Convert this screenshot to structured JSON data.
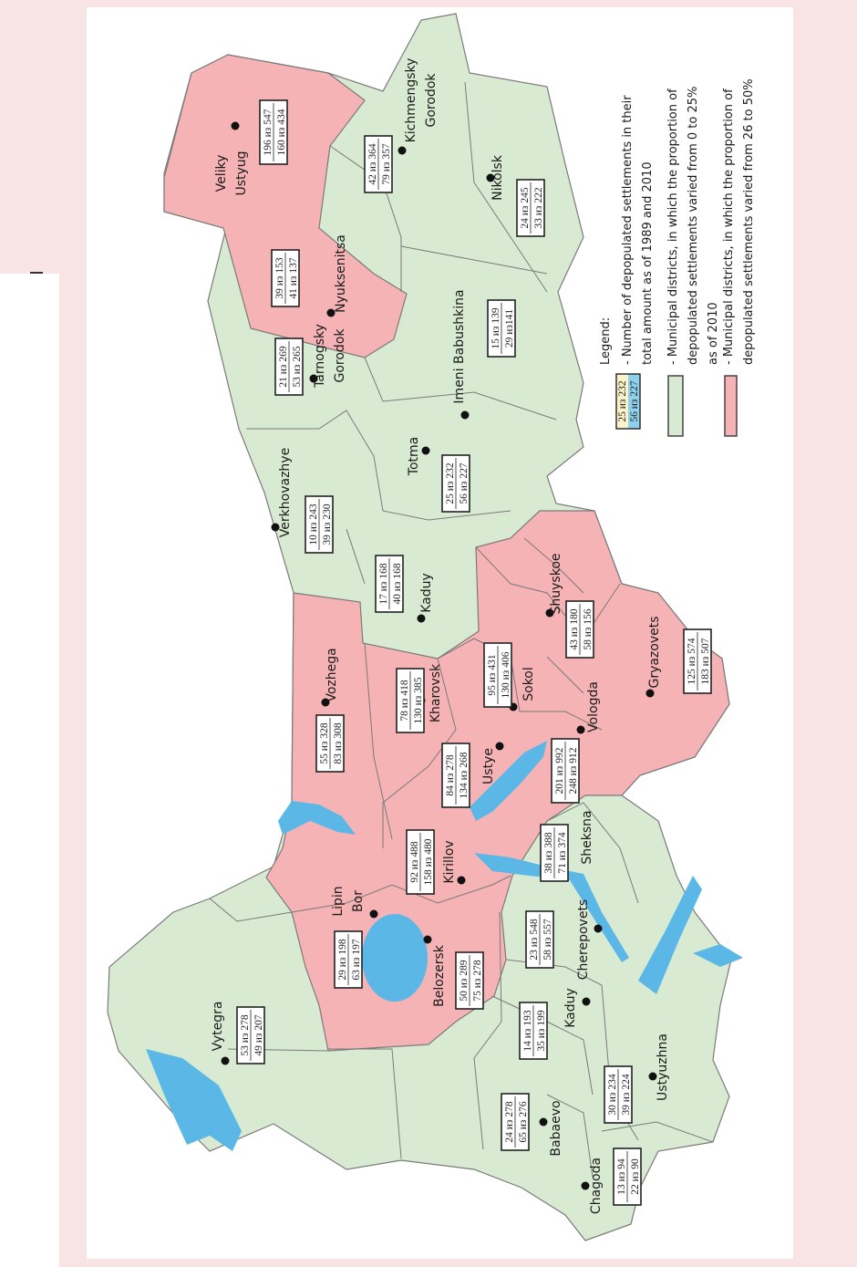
{
  "colors": {
    "low": "#d9ead3",
    "high": "#f6b3b5",
    "water": "#5bb8e6",
    "border": "#7a7a7a",
    "frame": "#f8e3e5",
    "year1989": "#fbf3c8",
    "year2010": "#8fd0ec"
  },
  "districts": [
    {
      "name": [
        "Veliky",
        "Ustyug"
      ],
      "c1989": "196 из 547",
      "c2010": "160 из 434",
      "category": "high"
    },
    {
      "name": [
        "Kichmengsky",
        "Gorodok"
      ],
      "c1989": "42 из 364",
      "c2010": "79 из 357",
      "category": "low"
    },
    {
      "name": [
        "Nikolsk"
      ],
      "c1989": "24 из 245",
      "c2010": "33 из 222",
      "category": "low"
    },
    {
      "name": [
        "Nyuksenitsa"
      ],
      "c1989": "39 из 153",
      "c2010": "41 из 137",
      "category": "high"
    },
    {
      "name": [
        "Tarnogsky",
        "Gorodok"
      ],
      "c1989": "21 из 269",
      "c2010": "53 из 265",
      "category": "low"
    },
    {
      "name": [
        "Imeni Babushkina"
      ],
      "c1989": "15 из 139",
      "c2010": "29 из141",
      "category": "low"
    },
    {
      "name": [
        "Totma"
      ],
      "c1989": "25 из 232",
      "c2010": "56 из 227",
      "category": "low"
    },
    {
      "name": [
        "Verkhovazhye"
      ],
      "c1989": "10 из 243",
      "c2010": "39 из 230",
      "category": "low"
    },
    {
      "name": [
        "Kaduy"
      ],
      "c1989": "17 из 168",
      "c2010": "40 из 168",
      "category": "low"
    },
    {
      "name": [
        "Vozhega"
      ],
      "c1989": "55 из 328",
      "c2010": "83 из 308",
      "category": "high"
    },
    {
      "name": [
        "Kharovsk"
      ],
      "c1989": "78 из 418",
      "c2010": "130 из 385",
      "category": "high"
    },
    {
      "name": [
        "Sokol"
      ],
      "c1989": "95 из 431",
      "c2010": "130 из 406",
      "category": "high"
    },
    {
      "name": [
        "Shuyskoe"
      ],
      "c1989": "43 из 180",
      "c2010": "58 из 156",
      "category": "high"
    },
    {
      "name": [
        "Gryazovets"
      ],
      "c1989": "125 из 574",
      "c2010": "183 из 507",
      "category": "high"
    },
    {
      "name": [
        "Ustye"
      ],
      "c1989": "84 из 278",
      "c2010": "134 из 268",
      "category": "high"
    },
    {
      "name": [
        "Vologda"
      ],
      "c1989": "201 из 992",
      "c2010": "248 из 912",
      "category": "high"
    },
    {
      "name": [
        "Kirillov"
      ],
      "c1989": "92 из 488",
      "c2010": "158 из 480",
      "category": "high"
    },
    {
      "name": [
        "Sheksna"
      ],
      "c1989": "38 из 388",
      "c2010": "71 из 374",
      "category": "low"
    },
    {
      "name": [
        "Lipin",
        "Bor"
      ],
      "c1989": "29 из 198",
      "c2010": "63 из 197",
      "category": "high"
    },
    {
      "name": [
        "Belozersk"
      ],
      "c1989": "50 из 289",
      "c2010": "75 из 278",
      "category": "high"
    },
    {
      "name": [
        "Cherepovets"
      ],
      "c1989": "23 из 548",
      "c2010": "58 из 557",
      "category": "low"
    },
    {
      "name": [
        "Kaduy"
      ],
      "c1989": "14 из 193",
      "c2010": "35 из 199",
      "category": "low"
    },
    {
      "name": [
        "Vytegra"
      ],
      "c1989": "53 из 278",
      "c2010": "49 из 207",
      "category": "low"
    },
    {
      "name": [
        "Ustyuzhna"
      ],
      "c1989": "30 из 234",
      "c2010": "39 из 224",
      "category": "low"
    },
    {
      "name": [
        "Babaevo"
      ],
      "c1989": "24 из 278",
      "c2010": "65 из 276",
      "category": "low"
    },
    {
      "name": [
        "Chagoda"
      ],
      "c1989": "13 из 94",
      "c2010": "22 из 90",
      "category": "low"
    }
  ],
  "legend": {
    "title": "Legend:",
    "sample_1989": "25 из 232",
    "sample_2010": "56 из 227",
    "counts_line1": "- Number of depopulated settlements in their",
    "counts_line2_prefix": "total amount as of ",
    "counts_year1": "1989",
    "counts_and": " and ",
    "counts_year2": "2010",
    "low_lines": [
      "- Municipal districts, in which the proportion of",
      "depopulated settlements varied from 0 to 25%",
      "as of 2010"
    ],
    "high_lines": [
      "- Municipal districts, in which the proportion of",
      "depopulated settlements varied from 26 to 50%"
    ]
  }
}
